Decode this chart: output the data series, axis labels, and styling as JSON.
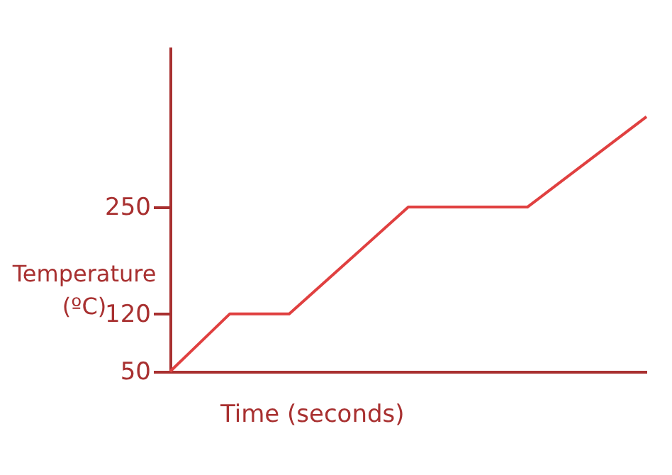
{
  "chart_data": {
    "type": "line",
    "xlabel": "Time (seconds)",
    "ylabel": "Temperature (ºC)",
    "categories": [
      null,
      null,
      null,
      null,
      null,
      null,
      null,
      null,
      null
    ],
    "series": [
      {
        "color": "#e04040",
        "values": [
          50,
          120,
          120,
          185,
          250,
          250,
          250,
          305,
          360
        ]
      }
    ],
    "ylim": [
      50,
      445
    ],
    "yticks": [
      50,
      120,
      250
    ],
    "tick_labels": "y",
    "grid": false,
    "legend": false,
    "marker": "none",
    "line_style": "solid"
  }
}
